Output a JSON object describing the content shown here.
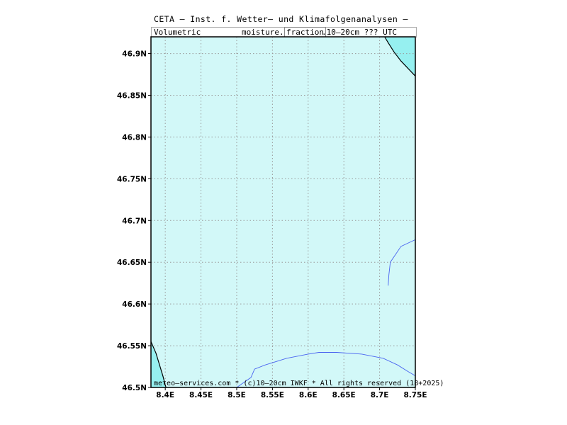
{
  "header": {
    "title": "CETA — Inst. f. Wetter— und Klimafolgenanalysen —",
    "subtitle_left": "Volumetric",
    "subtitle_mid": "moisture.",
    "subtitle_fraction": "fraction",
    "subtitle_right": ".10—20cm ??? UTC"
  },
  "footer": {
    "credit": "meteo—services.com * (c)10—20cm IWKF * All rights reserved (18+2025)"
  },
  "map": {
    "lon_range": [
      8.38,
      8.75
    ],
    "lat_range": [
      46.5,
      46.92
    ],
    "grid": "dotted",
    "field_color": "#d2f8f8",
    "region_color": "#96f0f0",
    "river_color": "#4a64f0",
    "lon_ticks": [
      8.4,
      8.45,
      8.5,
      8.55,
      8.6,
      8.65,
      8.7,
      8.75
    ],
    "lon_labels": [
      "8.4E",
      "8.45E",
      "8.5E",
      "8.55E",
      "8.6E",
      "8.65E",
      "8.7E",
      "8.75E"
    ],
    "lat_ticks": [
      46.5,
      46.55,
      46.6,
      46.65,
      46.7,
      46.75,
      46.8,
      46.85,
      46.9
    ],
    "lat_labels": [
      "46.5N",
      "46.55N",
      "46.6N",
      "46.65N",
      "46.7N",
      "46.75N",
      "46.8N",
      "46.85N",
      "46.9N"
    ],
    "river_main": [
      [
        8.5,
        46.5
      ],
      [
        8.51,
        46.506
      ],
      [
        8.52,
        46.512
      ],
      [
        8.525,
        46.522
      ],
      [
        8.54,
        46.527
      ],
      [
        8.57,
        46.535
      ],
      [
        8.6,
        46.54
      ],
      [
        8.615,
        46.542
      ],
      [
        8.64,
        46.542
      ],
      [
        8.675,
        46.54
      ],
      [
        8.705,
        46.535
      ],
      [
        8.725,
        46.527
      ],
      [
        8.74,
        46.519
      ],
      [
        8.75,
        46.514
      ]
    ],
    "river_east": [
      [
        8.712,
        46.622
      ],
      [
        8.713,
        46.635
      ],
      [
        8.715,
        46.65
      ],
      [
        8.73,
        46.669
      ],
      [
        8.75,
        46.677
      ]
    ],
    "region_ne": [
      [
        8.707,
        46.92
      ],
      [
        8.712,
        46.913
      ],
      [
        8.72,
        46.902
      ],
      [
        8.73,
        46.891
      ],
      [
        8.74,
        46.882
      ],
      [
        8.75,
        46.873
      ],
      [
        8.75,
        46.92
      ]
    ],
    "region_sw": [
      [
        8.38,
        46.555
      ],
      [
        8.387,
        46.541
      ],
      [
        8.392,
        46.527
      ],
      [
        8.397,
        46.513
      ],
      [
        8.4,
        46.503
      ],
      [
        8.401,
        46.5
      ],
      [
        8.38,
        46.5
      ]
    ]
  }
}
